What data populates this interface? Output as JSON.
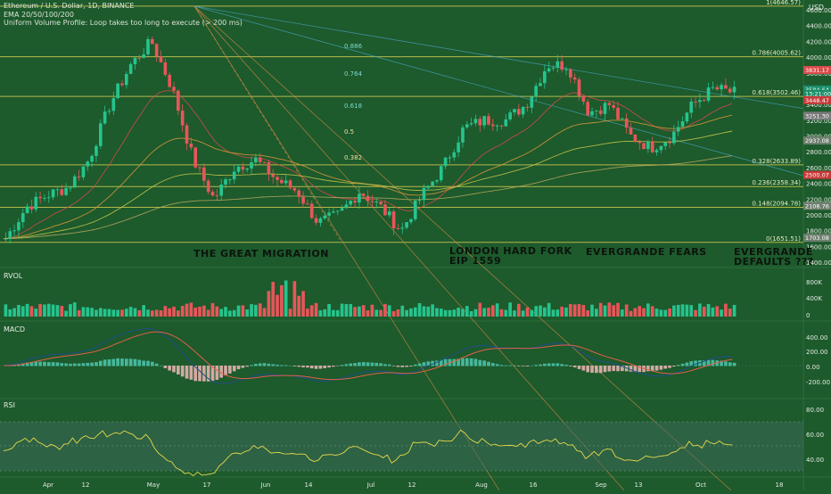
{
  "header": {
    "symbol_line": "Ethereum / U.S. Dollar, 1D, BINANCE",
    "indicator_1": "EMA 20/50/100/200",
    "indicator_2": "Uniform Volume Profile: Loop takes too long to execute (> 200 ms)"
  },
  "price_axis": {
    "currency": "USD",
    "ticks": [
      "4600.00",
      "4400.00",
      "4200.00",
      "4000.00",
      "3800.00",
      "3600.00",
      "3400.00",
      "3200.00",
      "3000.00",
      "2800.00",
      "2600.00",
      "2400.00",
      "2200.00",
      "2000.00",
      "1800.00",
      "1600.00",
      "1400.00"
    ]
  },
  "price_markers": [
    {
      "text": "3831.17",
      "color": "#d94a4a"
    },
    {
      "text": "3584.64",
      "color": "#1a8f6a"
    },
    {
      "text": "13:21:00",
      "color": "#1a8f6a"
    },
    {
      "text": "3448.47",
      "color": "#c83a3a"
    },
    {
      "text": "3251.30",
      "color": "#7a7a7a"
    },
    {
      "text": "2937.08",
      "color": "#6f7f6f"
    },
    {
      "text": "2500.07",
      "color": "#c83a3a"
    },
    {
      "text": "2108.76",
      "color": "#6f7f6f"
    },
    {
      "text": "1703.08",
      "color": "#6f7f6f"
    }
  ],
  "fib_levels": [
    {
      "label": "1(4646.57)"
    },
    {
      "label": "0.786(4005.62)"
    },
    {
      "label": "0.618(3502.46)"
    },
    {
      "label": "0.328(2633.89)"
    },
    {
      "label": "0.236(2358.34)"
    },
    {
      "label": "0.148(2094.78)"
    },
    {
      "label": "0(1651.51)"
    }
  ],
  "fan_labels": [
    "0.886",
    "0.764",
    "0.618",
    "0.5",
    "0.382"
  ],
  "annotations": {
    "great_migration": "THE GREAT MIGRATION",
    "london_line1": "LONDON HARD FORK",
    "london_line2": "EIP 1559",
    "evergrande_fears": "EVERGRANDE FEARS",
    "defaults_line1": "EVERGRANDE",
    "defaults_line2": "DEFAULTS ???"
  },
  "rvol": {
    "label": "RVOL",
    "ticks": [
      "800K",
      "400K",
      "0"
    ]
  },
  "macd": {
    "label": "MACD",
    "ticks": [
      "400.00",
      "200.00",
      "0.00",
      "-200.00"
    ]
  },
  "rsi": {
    "label": "RSI",
    "ticks": [
      "80.00",
      "60.00",
      "40.00"
    ]
  },
  "time_axis": [
    "Apr",
    "12",
    "May",
    "17",
    "Jun",
    "14",
    "Jul",
    "12",
    "Aug",
    "16",
    "Sep",
    "13",
    "Oct",
    "18"
  ],
  "colors": {
    "background": "#1d5a2c",
    "up_candle": "#26c48e",
    "down_candle": "#e8565a",
    "fib_line": "#c6c24e",
    "fan_line": "#d4a040",
    "trend_line": "#4aa8c8"
  },
  "chart_data": {
    "type": "candlestick",
    "title": "Ethereum / U.S. Dollar, 1D, BINANCE",
    "ylabel": "USD",
    "ylim": [
      1400,
      4800
    ],
    "x_ticks": [
      "Apr",
      "12",
      "May",
      "17",
      "Jun",
      "14",
      "Jul",
      "12",
      "Aug",
      "16",
      "Sep",
      "13",
      "Oct",
      "18"
    ],
    "close_path": [
      [
        "Mar 28",
        1700
      ],
      [
        "Apr 5",
        2100
      ],
      [
        "Apr 12",
        2250
      ],
      [
        "Apr 20",
        2350
      ],
      [
        "Apr 28",
        2700
      ],
      [
        "May 4",
        3400
      ],
      [
        "May 8",
        3900
      ],
      [
        "May 12",
        4200
      ],
      [
        "May 15",
        3600
      ],
      [
        "May 19",
        2700
      ],
      [
        "May 23",
        2200
      ],
      [
        "May 27",
        2600
      ],
      [
        "Jun 3",
        2700
      ],
      [
        "Jun 10",
        2450
      ],
      [
        "Jun 17",
        2300
      ],
      [
        "Jun 22",
        1900
      ],
      [
        "Jun 27",
        2000
      ],
      [
        "Jul 4",
        2300
      ],
      [
        "Jul 11",
        2100
      ],
      [
        "Jul 20",
        1800
      ],
      [
        "Jul 26",
        2250
      ],
      [
        "Aug 2",
        2600
      ],
      [
        "Aug 9",
        3100
      ],
      [
        "Aug 16",
        3200
      ],
      [
        "Aug 24",
        3200
      ],
      [
        "Aug 31",
        3400
      ],
      [
        "Sep 3",
        3900
      ],
      [
        "Sep 6",
        3900
      ],
      [
        "Sep 10",
        3300
      ],
      [
        "Sep 14",
        3400
      ],
      [
        "Sep 20",
        3000
      ],
      [
        "Sep 25",
        2850
      ],
      [
        "Sep 30",
        3000
      ],
      [
        "Oct 3",
        3400
      ],
      [
        "Oct 7",
        3600
      ],
      [
        "Oct 11",
        3550
      ]
    ]
  }
}
